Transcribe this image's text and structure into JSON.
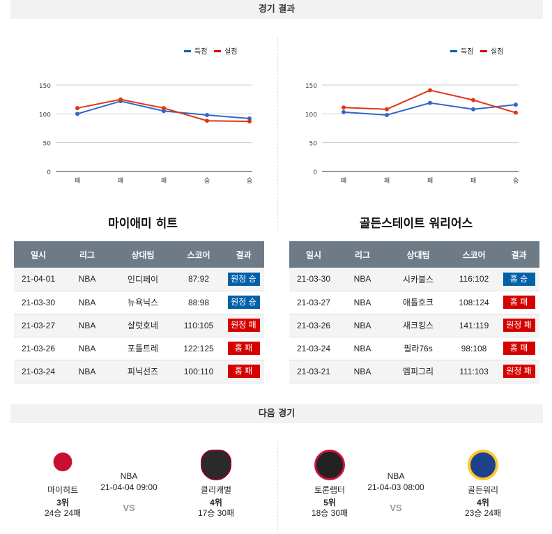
{
  "sections": {
    "results_title": "경기 결과",
    "next_title": "다음 경기"
  },
  "legend": {
    "scored": "득점",
    "conceded": "실점"
  },
  "colors": {
    "scored": "#3366cc",
    "conceded": "#dc3912",
    "win": "#0060a8",
    "loss": "#d50000",
    "header": "#6e7b86"
  },
  "table_headers": [
    "일시",
    "리그",
    "상대팀",
    "스코어",
    "결과"
  ],
  "teams": [
    {
      "name": "마이애미 히트",
      "games": [
        {
          "date": "21-04-01",
          "league": "NBA",
          "opponent": "인디페이",
          "score": "87:92",
          "result": "원정 승",
          "win": true
        },
        {
          "date": "21-03-30",
          "league": "NBA",
          "opponent": "뉴욕닉스",
          "score": "88:98",
          "result": "원정 승",
          "win": true
        },
        {
          "date": "21-03-27",
          "league": "NBA",
          "opponent": "샬럿호네",
          "score": "110:105",
          "result": "원정 패",
          "win": false
        },
        {
          "date": "21-03-26",
          "league": "NBA",
          "opponent": "포틀트레",
          "score": "122:125",
          "result": "홈 패",
          "win": false
        },
        {
          "date": "21-03-24",
          "league": "NBA",
          "opponent": "피닉선즈",
          "score": "100:110",
          "result": "홈 패",
          "win": false
        }
      ]
    },
    {
      "name": "골든스테이트 워리어스",
      "games": [
        {
          "date": "21-03-30",
          "league": "NBA",
          "opponent": "시카불스",
          "score": "116:102",
          "result": "홈 승",
          "win": true
        },
        {
          "date": "21-03-27",
          "league": "NBA",
          "opponent": "애틀호크",
          "score": "108:124",
          "result": "홈 패",
          "win": false
        },
        {
          "date": "21-03-26",
          "league": "NBA",
          "opponent": "새크킹스",
          "score": "141:119",
          "result": "원정 패",
          "win": false
        },
        {
          "date": "21-03-24",
          "league": "NBA",
          "opponent": "필라76s",
          "score": "98:108",
          "result": "홈 패",
          "win": false
        },
        {
          "date": "21-03-21",
          "league": "NBA",
          "opponent": "멤피그리",
          "score": "111:103",
          "result": "원정 패",
          "win": false
        }
      ]
    }
  ],
  "chart_data": [
    {
      "type": "line",
      "categories": [
        "패",
        "패",
        "패",
        "승",
        "승"
      ],
      "yticks": [
        0,
        50,
        100,
        150
      ],
      "ylim": [
        0,
        150
      ],
      "grid": true,
      "legend": "top-right",
      "series": [
        {
          "name": "득점",
          "values": [
            100,
            122,
            105,
            98,
            92
          ]
        },
        {
          "name": "실점",
          "values": [
            110,
            125,
            110,
            88,
            87
          ]
        }
      ]
    },
    {
      "type": "line",
      "categories": [
        "패",
        "패",
        "패",
        "패",
        "승"
      ],
      "yticks": [
        0,
        50,
        100,
        150
      ],
      "ylim": [
        0,
        150
      ],
      "grid": true,
      "legend": "top-right",
      "series": [
        {
          "name": "득점",
          "values": [
            103,
            98,
            119,
            108,
            116
          ]
        },
        {
          "name": "실점",
          "values": [
            111,
            108,
            141,
            124,
            102
          ]
        }
      ]
    }
  ],
  "next_games": [
    {
      "league": "NBA",
      "datetime": "21-04-04 09:00",
      "vs": "VS",
      "home": {
        "name": "마이히트",
        "rank": "3위",
        "record": "24승 24패",
        "logo": "miami-heat-logo"
      },
      "away": {
        "name": "클리캐벌",
        "rank": "4위",
        "record": "17승 30패",
        "logo": "cleveland-cavaliers-logo"
      }
    },
    {
      "league": "NBA",
      "datetime": "21-04-03 08:00",
      "vs": "VS",
      "home": {
        "name": "토론랩터",
        "rank": "5위",
        "record": "18승 30패",
        "logo": "toronto-raptors-logo"
      },
      "away": {
        "name": "골든워리",
        "rank": "4위",
        "record": "23승 24패",
        "logo": "golden-state-warriors-logo"
      }
    }
  ]
}
